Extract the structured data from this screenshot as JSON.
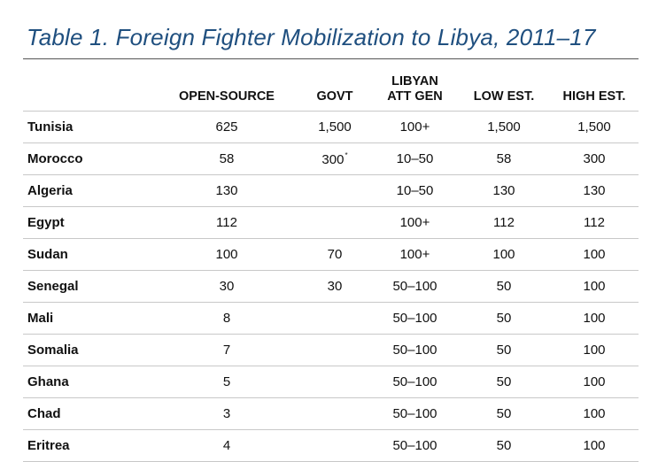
{
  "title": "Table 1. Foreign Fighter Mobilization to Libya, 2011–17",
  "columns": {
    "country": "",
    "open_source": "OPEN-SOURCE",
    "govt": "GOVT",
    "libyan_att_gen_line1": "LIBYAN",
    "libyan_att_gen_line2": "ATT GEN",
    "low_est": "LOW EST.",
    "high_est": "HIGH EST."
  },
  "rows": [
    {
      "country": "Tunisia",
      "open_source": "625",
      "govt": "1,500",
      "govt_note": "",
      "libyan_att_gen": "100+",
      "low_est": "1,500",
      "high_est": "1,500"
    },
    {
      "country": "Morocco",
      "open_source": "58",
      "govt": "300",
      "govt_note": "*",
      "libyan_att_gen": "10–50",
      "low_est": "58",
      "high_est": "300"
    },
    {
      "country": "Algeria",
      "open_source": "130",
      "govt": "",
      "govt_note": "",
      "libyan_att_gen": "10–50",
      "low_est": "130",
      "high_est": "130"
    },
    {
      "country": "Egypt",
      "open_source": "112",
      "govt": "",
      "govt_note": "",
      "libyan_att_gen": "100+",
      "low_est": "112",
      "high_est": "112"
    },
    {
      "country": "Sudan",
      "open_source": "100",
      "govt": "70",
      "govt_note": "",
      "libyan_att_gen": "100+",
      "low_est": "100",
      "high_est": "100"
    },
    {
      "country": "Senegal",
      "open_source": "30",
      "govt": "30",
      "govt_note": "",
      "libyan_att_gen": "50–100",
      "low_est": "50",
      "high_est": "100"
    },
    {
      "country": "Mali",
      "open_source": "8",
      "govt": "",
      "govt_note": "",
      "libyan_att_gen": "50–100",
      "low_est": "50",
      "high_est": "100"
    },
    {
      "country": "Somalia",
      "open_source": "7",
      "govt": "",
      "govt_note": "",
      "libyan_att_gen": "50–100",
      "low_est": "50",
      "high_est": "100"
    },
    {
      "country": "Ghana",
      "open_source": "5",
      "govt": "",
      "govt_note": "",
      "libyan_att_gen": "50–100",
      "low_est": "50",
      "high_est": "100"
    },
    {
      "country": "Chad",
      "open_source": "3",
      "govt": "",
      "govt_note": "",
      "libyan_att_gen": "50–100",
      "low_est": "50",
      "high_est": "100"
    },
    {
      "country": "Eritrea",
      "open_source": "4",
      "govt": "",
      "govt_note": "",
      "libyan_att_gen": "50–100",
      "low_est": "50",
      "high_est": "100"
    }
  ],
  "colors": {
    "title": "#1f4f7f",
    "rule": "#555555",
    "row_border": "#c8c8c8"
  }
}
